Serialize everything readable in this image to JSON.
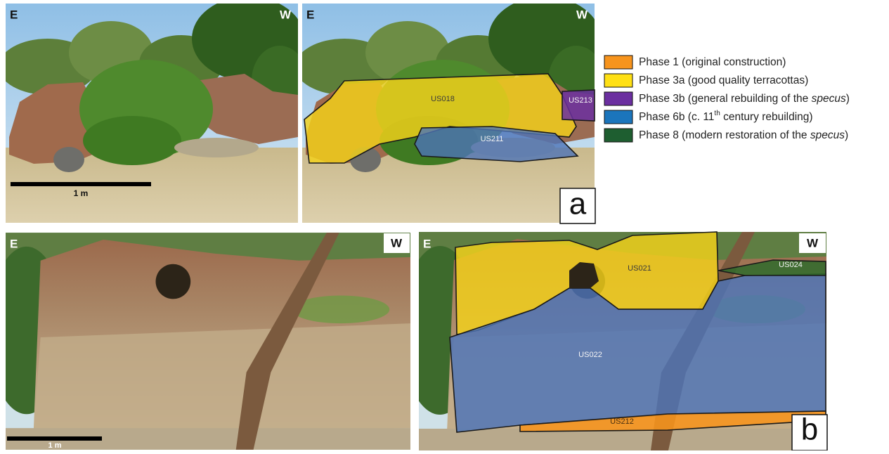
{
  "panel_a": {
    "letter": "a",
    "photo_left": {
      "east": "E",
      "west": "W",
      "scale": "1 m"
    },
    "photo_right": {
      "east": "E",
      "west": "W",
      "units": [
        "US018",
        "US211",
        "US213"
      ]
    }
  },
  "panel_b": {
    "letter": "b",
    "photo_left": {
      "east": "E",
      "west": "W",
      "scale": "1 m"
    },
    "photo_right": {
      "east": "E",
      "west": "W",
      "units": [
        "US021",
        "US022",
        "US024",
        "US212"
      ]
    }
  },
  "legend": [
    {
      "color": "#f7941d",
      "text": "Phase 1 (original construction)"
    },
    {
      "color": "#ffe014",
      "text": "Phase 3a (good quality terracottas)"
    },
    {
      "color": "#6b2fa0",
      "text": "Phase 3b (general rebuilding of the ",
      "em": "specus",
      "tail": ")"
    },
    {
      "color": "#1b75bc",
      "text": "Phase 6b (c. 11",
      "sup": "th",
      "tail": " century rebuilding)"
    },
    {
      "color": "#1e5e30",
      "text": "Phase 8 (modern restoration of the ",
      "em": "specus",
      "tail": ")"
    }
  ]
}
